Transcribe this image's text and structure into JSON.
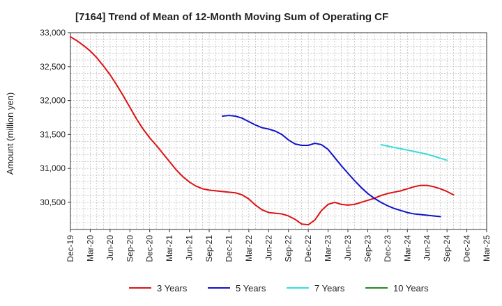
{
  "chart_data": {
    "type": "line",
    "title": "[7164]  Trend of Mean of 12-Month Moving Sum of Operating CF",
    "xlabel": "",
    "ylabel": "Amount (million yen)",
    "ylim": [
      30100,
      33000
    ],
    "yticks": [
      30500,
      31000,
      31500,
      32000,
      32500,
      33000
    ],
    "ytick_labels": [
      "30,500",
      "31,000",
      "31,500",
      "32,000",
      "32,500",
      "33,000"
    ],
    "x_months": [
      "Dec-19",
      "Jan-20",
      "Feb-20",
      "Mar-20",
      "Apr-20",
      "May-20",
      "Jun-20",
      "Jul-20",
      "Aug-20",
      "Sep-20",
      "Oct-20",
      "Nov-20",
      "Dec-20",
      "Jan-21",
      "Feb-21",
      "Mar-21",
      "Apr-21",
      "May-21",
      "Jun-21",
      "Jul-21",
      "Aug-21",
      "Sep-21",
      "Oct-21",
      "Nov-21",
      "Dec-21",
      "Jan-22",
      "Feb-22",
      "Mar-22",
      "Apr-22",
      "May-22",
      "Jun-22",
      "Jul-22",
      "Aug-22",
      "Sep-22",
      "Oct-22",
      "Nov-22",
      "Dec-22",
      "Jan-23",
      "Feb-23",
      "Mar-23",
      "Apr-23",
      "May-23",
      "Jun-23",
      "Jul-23",
      "Aug-23",
      "Sep-23",
      "Oct-23",
      "Nov-23",
      "Dec-23",
      "Jan-24",
      "Feb-24",
      "Mar-24",
      "Apr-24",
      "May-24",
      "Jun-24",
      "Jul-24",
      "Aug-24",
      "Sep-24",
      "Oct-24",
      "Nov-24",
      "Dec-24",
      "Jan-25",
      "Feb-25",
      "Mar-25"
    ],
    "xtick_labels": [
      "Dec-19",
      "Mar-20",
      "Jun-20",
      "Sep-20",
      "Dec-20",
      "Mar-21",
      "Jun-21",
      "Sep-21",
      "Dec-21",
      "Mar-22",
      "Jun-22",
      "Sep-22",
      "Dec-22",
      "Mar-23",
      "Jun-23",
      "Sep-23",
      "Dec-23",
      "Mar-24",
      "Jun-24",
      "Sep-24",
      "Dec-24",
      "Mar-25"
    ],
    "series": [
      {
        "name": "3 Years",
        "color": "#dd1111",
        "start": "Dec-19",
        "values": [
          32940,
          32880,
          32810,
          32730,
          32630,
          32510,
          32380,
          32230,
          32070,
          31900,
          31730,
          31580,
          31450,
          31340,
          31220,
          31100,
          30980,
          30880,
          30800,
          30740,
          30700,
          30680,
          30670,
          30660,
          30650,
          30640,
          30610,
          30550,
          30460,
          30390,
          30350,
          30340,
          30330,
          30300,
          30250,
          30180,
          30170,
          30240,
          30380,
          30470,
          30500,
          30470,
          30460,
          30470,
          30500,
          30530,
          30560,
          30600,
          30630,
          30650,
          30670,
          30700,
          30730,
          30750,
          30750,
          30730,
          30700,
          30660,
          30610
        ]
      },
      {
        "name": "5 Years",
        "color": "#1111cc",
        "start": "Nov-21",
        "values": [
          31770,
          31780,
          31770,
          31740,
          31690,
          31640,
          31600,
          31580,
          31550,
          31500,
          31420,
          31360,
          31340,
          31340,
          31370,
          31350,
          31280,
          31160,
          31040,
          30930,
          30820,
          30720,
          30630,
          30560,
          30500,
          30450,
          30410,
          30380,
          30350,
          30330,
          30320,
          30310,
          30300,
          30290
        ]
      },
      {
        "name": "7 Years",
        "color": "#33dddd",
        "start": "Nov-23",
        "values": [
          31350,
          31330,
          31310,
          31290,
          31270,
          31250,
          31230,
          31210,
          31180,
          31150,
          31120
        ]
      },
      {
        "name": "10 Years",
        "color": "#228822",
        "start": "Dec-19",
        "values": []
      }
    ]
  }
}
